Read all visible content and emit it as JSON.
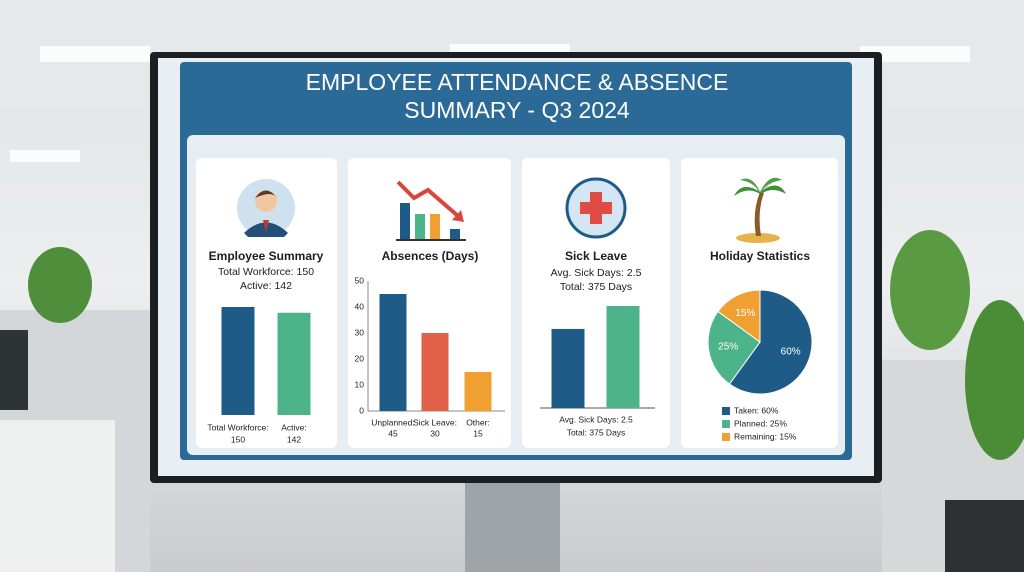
{
  "title": [
    "EMPLOYEE ATTENDANCE & ABSENCE",
    "SUMMARY - Q3 2024"
  ],
  "chart_data": [
    {
      "type": "bar",
      "title": "Employee Summary",
      "subtitle": [
        "Total Workforce: 150",
        "Active: 142"
      ],
      "categories": [
        "Total Workforce:",
        "Active:"
      ],
      "values": [
        150,
        142
      ],
      "colors": [
        "#1f5b87",
        "#4db38a"
      ]
    },
    {
      "type": "bar",
      "title": "Absences (Days)",
      "categories": [
        "Unplanned:",
        "Sick Leave:",
        "Other:"
      ],
      "values": [
        45,
        30,
        15
      ],
      "colors": [
        "#1f5b87",
        "#e0604a",
        "#f0a030"
      ],
      "ylim": [
        0,
        50
      ],
      "yticks": [
        0,
        10,
        20,
        30,
        40,
        50
      ]
    },
    {
      "type": "bar",
      "title": "Sick Leave",
      "subtitle": [
        "Avg. Sick Days: 2.5",
        "Total: 375 Days"
      ],
      "categories": [
        null,
        null
      ],
      "values": [
        31,
        40
      ],
      "colors": [
        "#1f5b87",
        "#4db38a"
      ],
      "caption": [
        "Avg. Sick Days: 2.5",
        "Total: 375 Days"
      ]
    },
    {
      "type": "pie",
      "title": "Holiday Statistics",
      "categories": [
        "Taken: 60%",
        "Planned: 25%",
        "Remaining: 15%"
      ],
      "values": [
        60,
        25,
        15
      ],
      "value_labels": [
        "60%",
        "25%",
        "15%"
      ],
      "colors": [
        "#1f5b87",
        "#4db38a",
        "#f0a030"
      ]
    }
  ]
}
